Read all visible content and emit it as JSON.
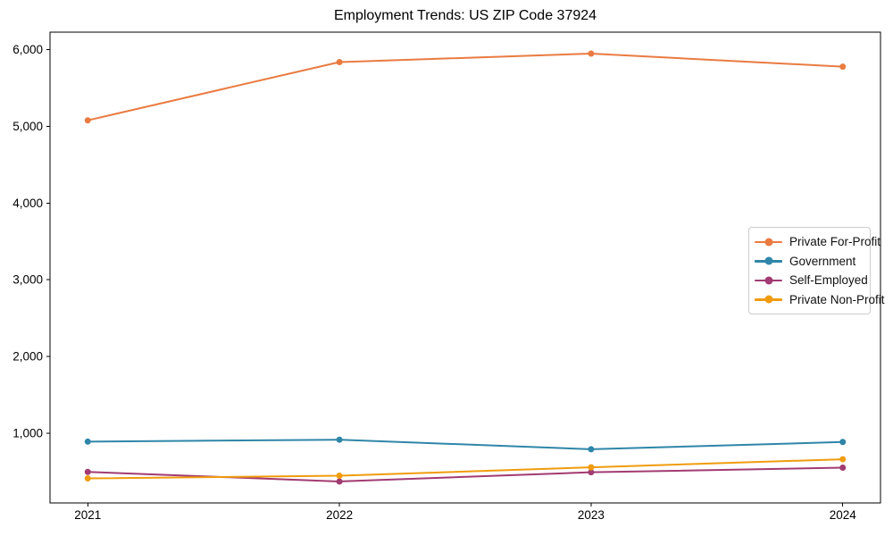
{
  "title": "Employment Trends: US ZIP Code 37924",
  "chart_data": {
    "type": "line",
    "title": "Employment Trends: US ZIP Code 37924",
    "xlabel": "",
    "ylabel": "",
    "x": [
      2021,
      2022,
      2023,
      2024
    ],
    "categories": [
      "2021",
      "2022",
      "2023",
      "2024"
    ],
    "series": [
      {
        "name": "Private For-Profit",
        "color": "#E97B41",
        "values": [
          5080,
          5840,
          5950,
          5780
        ]
      },
      {
        "name": "Government",
        "color": "#2F86A8",
        "values": [
          890,
          915,
          790,
          885
        ]
      },
      {
        "name": "Self-Employed",
        "color": "#A23B72",
        "values": [
          495,
          370,
          490,
          550
        ]
      },
      {
        "name": "Private Non-Profit",
        "color": "#F09C0E",
        "values": [
          410,
          445,
          555,
          660
        ]
      }
    ],
    "xlim": [
      2020.85,
      2024.15
    ],
    "ylim": [
      90,
      6230
    ],
    "yticks": [
      1000,
      2000,
      3000,
      4000,
      5000,
      6000
    ],
    "ytick_labels": [
      "1,000",
      "2,000",
      "3,000",
      "4,000",
      "5,000",
      "6,000"
    ],
    "grid": false,
    "legend_position": "center-right",
    "marker": "circle",
    "line_width": 2,
    "marker_radius": 3.5,
    "axis_color": "#000000",
    "background_color": "#ffffff"
  }
}
